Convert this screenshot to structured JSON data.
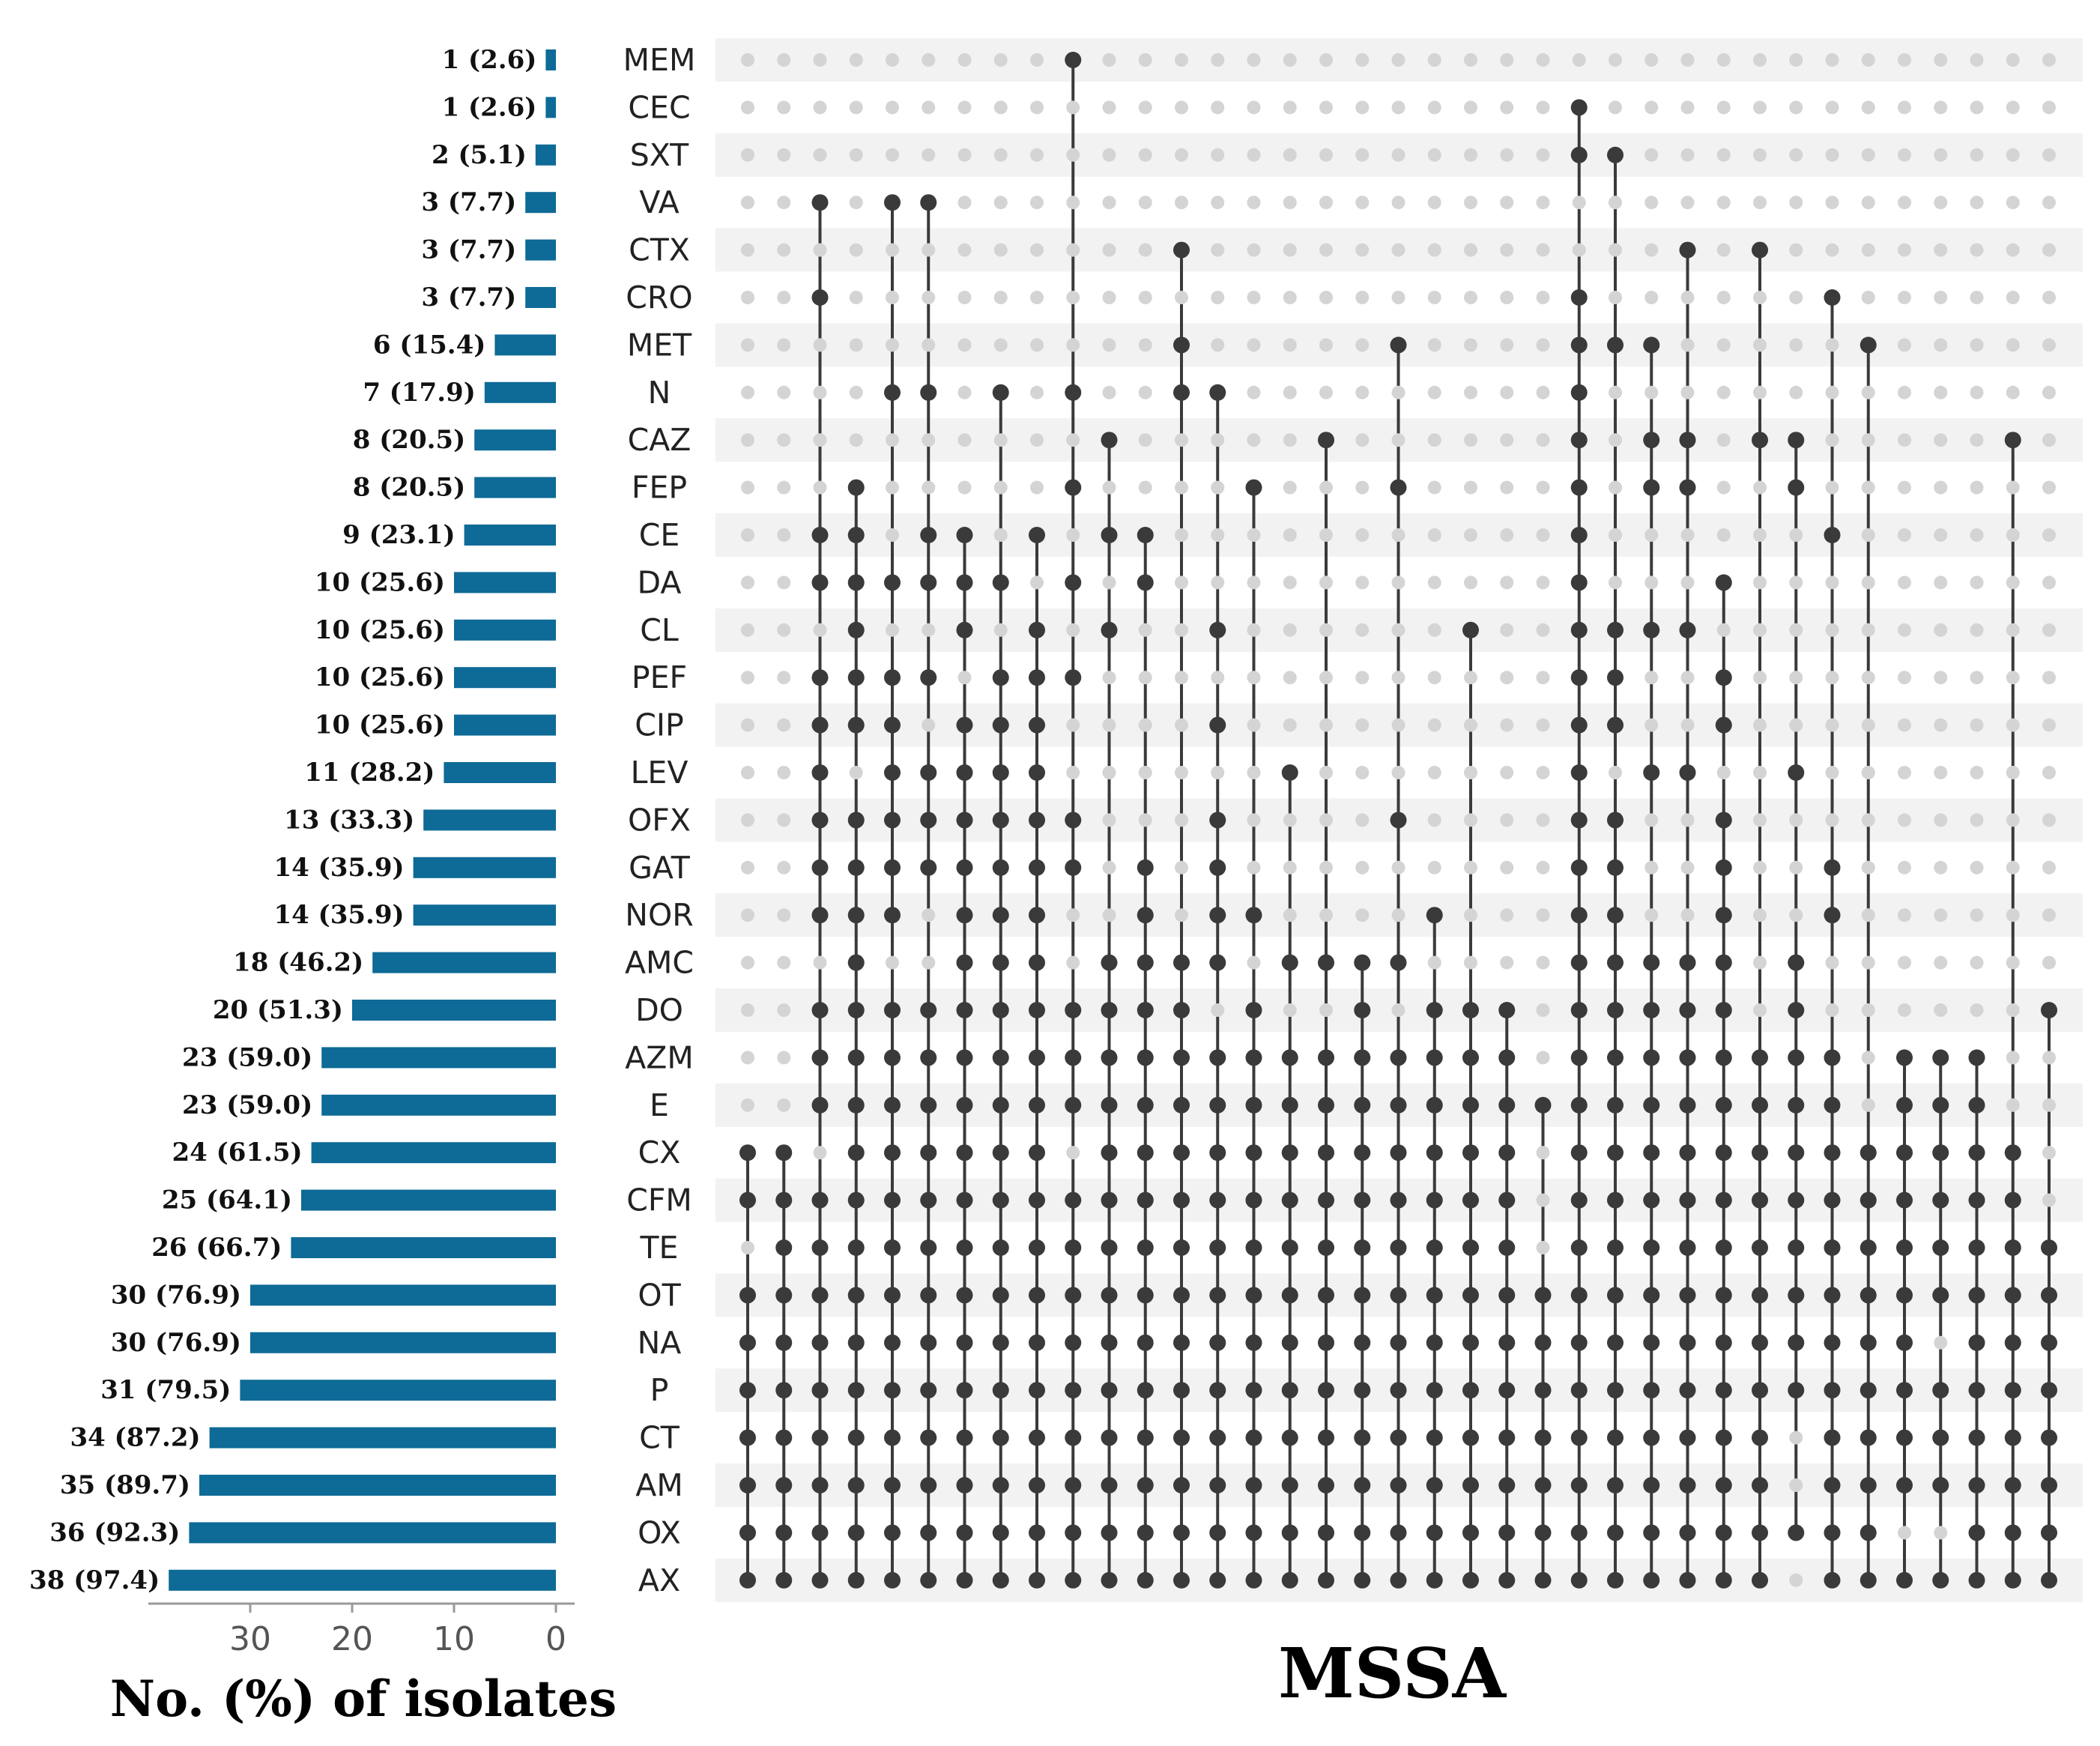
{
  "chart_data": {
    "type": "upset",
    "title": "MSSA",
    "xlabel": "No. (%) of isolates",
    "xlim": [
      0,
      40
    ],
    "x_ticks": [
      "30",
      "20",
      "10",
      "0"
    ],
    "x_tick_values": [
      30,
      20,
      10,
      0
    ],
    "colors": {
      "bar": "#0e6a96",
      "dot_active": "#3a3a3a",
      "dot_inactive": "#d4d4d4",
      "stripe": "#f2f2f2",
      "axis": "#999999"
    },
    "sets": [
      "MEM",
      "CEC",
      "SXT",
      "VA",
      "CTX",
      "CRO",
      "MET",
      "N",
      "CAZ",
      "FEP",
      "CE",
      "DA",
      "CL",
      "PEF",
      "CIP",
      "LEV",
      "OFX",
      "GAT",
      "NOR",
      "AMC",
      "DO",
      "AZM",
      "E",
      "CX",
      "CFM",
      "TE",
      "OT",
      "NA",
      "P",
      "CT",
      "AM",
      "OX",
      "AX"
    ],
    "set_sizes": [
      1,
      1,
      2,
      3,
      3,
      3,
      6,
      7,
      8,
      8,
      9,
      10,
      10,
      10,
      10,
      11,
      13,
      14,
      14,
      18,
      20,
      23,
      23,
      24,
      25,
      26,
      30,
      30,
      31,
      34,
      35,
      36,
      38
    ],
    "set_size_labels": [
      "1 (2.6)",
      "1 (2.6)",
      "2 (5.1)",
      "3 (7.7)",
      "3 (7.7)",
      "3 (7.7)",
      "6 (15.4)",
      "7 (17.9)",
      "8 (20.5)",
      "8 (20.5)",
      "9 (23.1)",
      "10 (25.6)",
      "10 (25.6)",
      "10 (25.6)",
      "10 (25.6)",
      "11 (28.2)",
      "13 (33.3)",
      "14 (35.9)",
      "14 (35.9)",
      "18 (46.2)",
      "20 (51.3)",
      "23 (59.0)",
      "23 (59.0)",
      "24 (61.5)",
      "25 (64.1)",
      "26 (66.7)",
      "30 (76.9)",
      "30 (76.9)",
      "31 (79.5)",
      "34 (87.2)",
      "35 (89.7)",
      "36 (92.3)",
      "38 (97.4)"
    ],
    "intersections": [
      [
        "CX",
        "CFM",
        "OT",
        "NA",
        "P",
        "CT",
        "AM",
        "OX",
        "AX"
      ],
      [
        "CX",
        "CFM",
        "TE",
        "OT",
        "NA",
        "P",
        "CT",
        "AM",
        "OX",
        "AX"
      ],
      [
        "VA",
        "CRO",
        "CE",
        "DA",
        "PEF",
        "CIP",
        "LEV",
        "OFX",
        "GAT",
        "NOR",
        "DO",
        "AZM",
        "E",
        "CFM",
        "TE",
        "OT",
        "NA",
        "P",
        "CT",
        "AM",
        "OX",
        "AX"
      ],
      [
        "FEP",
        "CE",
        "DA",
        "CL",
        "PEF",
        "CIP",
        "OFX",
        "GAT",
        "NOR",
        "AMC",
        "DO",
        "AZM",
        "E",
        "CX",
        "CFM",
        "TE",
        "OT",
        "NA",
        "P",
        "CT",
        "AM",
        "OX",
        "AX"
      ],
      [
        "VA",
        "N",
        "DA",
        "PEF",
        "CIP",
        "LEV",
        "OFX",
        "GAT",
        "NOR",
        "DO",
        "AZM",
        "E",
        "CX",
        "CFM",
        "TE",
        "OT",
        "NA",
        "P",
        "CT",
        "AM",
        "OX",
        "AX"
      ],
      [
        "VA",
        "N",
        "CE",
        "DA",
        "PEF",
        "LEV",
        "OFX",
        "GAT",
        "DO",
        "AZM",
        "E",
        "CX",
        "CFM",
        "TE",
        "OT",
        "NA",
        "P",
        "CT",
        "AM",
        "OX",
        "AX"
      ],
      [
        "CE",
        "DA",
        "CL",
        "CIP",
        "LEV",
        "OFX",
        "GAT",
        "NOR",
        "AMC",
        "DO",
        "AZM",
        "E",
        "CX",
        "CFM",
        "TE",
        "OT",
        "NA",
        "P",
        "CT",
        "AM",
        "OX",
        "AX"
      ],
      [
        "N",
        "DA",
        "PEF",
        "CIP",
        "LEV",
        "OFX",
        "GAT",
        "NOR",
        "AMC",
        "DO",
        "AZM",
        "E",
        "CX",
        "CFM",
        "TE",
        "OT",
        "NA",
        "P",
        "CT",
        "AM",
        "OX",
        "AX"
      ],
      [
        "CE",
        "CL",
        "PEF",
        "CIP",
        "LEV",
        "OFX",
        "GAT",
        "NOR",
        "AMC",
        "DO",
        "AZM",
        "E",
        "CX",
        "CFM",
        "TE",
        "OT",
        "NA",
        "P",
        "CT",
        "AM",
        "OX",
        "AX"
      ],
      [
        "MEM",
        "N",
        "FEP",
        "DA",
        "PEF",
        "OFX",
        "GAT",
        "DO",
        "AZM",
        "E",
        "CFM",
        "TE",
        "OT",
        "NA",
        "P",
        "CT",
        "AM",
        "OX",
        "AX"
      ],
      [
        "CAZ",
        "CE",
        "CL",
        "AMC",
        "DO",
        "AZM",
        "E",
        "CX",
        "CFM",
        "TE",
        "OT",
        "NA",
        "P",
        "CT",
        "AM",
        "OX",
        "AX"
      ],
      [
        "CE",
        "DA",
        "GAT",
        "NOR",
        "AMC",
        "DO",
        "AZM",
        "E",
        "CX",
        "CFM",
        "TE",
        "OT",
        "NA",
        "P",
        "CT",
        "AM",
        "OX",
        "AX"
      ],
      [
        "CTX",
        "MET",
        "N",
        "AMC",
        "DO",
        "AZM",
        "E",
        "CX",
        "CFM",
        "TE",
        "OT",
        "NA",
        "P",
        "CT",
        "AM",
        "OX",
        "AX"
      ],
      [
        "N",
        "CL",
        "CIP",
        "OFX",
        "GAT",
        "NOR",
        "AMC",
        "AZM",
        "E",
        "CX",
        "CFM",
        "TE",
        "OT",
        "NA",
        "P",
        "CT",
        "AM",
        "OX",
        "AX"
      ],
      [
        "FEP",
        "NOR",
        "DO",
        "AZM",
        "E",
        "CX",
        "CFM",
        "TE",
        "OT",
        "NA",
        "P",
        "CT",
        "AM",
        "OX",
        "AX"
      ],
      [
        "LEV",
        "AMC",
        "AZM",
        "E",
        "CX",
        "CFM",
        "TE",
        "OT",
        "NA",
        "P",
        "CT",
        "AM",
        "OX",
        "AX"
      ],
      [
        "CAZ",
        "AMC",
        "AZM",
        "E",
        "CX",
        "CFM",
        "TE",
        "OT",
        "NA",
        "P",
        "CT",
        "AM",
        "OX",
        "AX"
      ],
      [
        "AMC",
        "DO",
        "AZM",
        "E",
        "CX",
        "CFM",
        "TE",
        "OT",
        "NA",
        "P",
        "CT",
        "AM",
        "OX",
        "AX"
      ],
      [
        "MET",
        "FEP",
        "OFX",
        "AMC",
        "AZM",
        "E",
        "CX",
        "CFM",
        "TE",
        "OT",
        "NA",
        "P",
        "CT",
        "AM",
        "OX",
        "AX"
      ],
      [
        "NOR",
        "DO",
        "AZM",
        "E",
        "CX",
        "CFM",
        "TE",
        "OT",
        "NA",
        "P",
        "CT",
        "AM",
        "OX",
        "AX"
      ],
      [
        "CL",
        "DO",
        "AZM",
        "E",
        "CX",
        "CFM",
        "TE",
        "OT",
        "NA",
        "P",
        "CT",
        "AM",
        "OX",
        "AX"
      ],
      [
        "DO",
        "AZM",
        "E",
        "CX",
        "CFM",
        "TE",
        "OT",
        "NA",
        "P",
        "CT",
        "AM",
        "OX",
        "AX"
      ],
      [
        "E",
        "OT",
        "NA",
        "P",
        "CT",
        "AM",
        "OX",
        "AX"
      ],
      [
        "CEC",
        "SXT",
        "CRO",
        "MET",
        "N",
        "CAZ",
        "FEP",
        "CE",
        "DA",
        "CL",
        "PEF",
        "CIP",
        "LEV",
        "OFX",
        "GAT",
        "NOR",
        "AMC",
        "DO",
        "AZM",
        "E",
        "CX",
        "CFM",
        "TE",
        "OT",
        "NA",
        "P",
        "CT",
        "AM",
        "OX",
        "AX"
      ],
      [
        "SXT",
        "MET",
        "CL",
        "PEF",
        "CIP",
        "OFX",
        "GAT",
        "NOR",
        "AMC",
        "DO",
        "AZM",
        "E",
        "CX",
        "CFM",
        "TE",
        "OT",
        "NA",
        "P",
        "CT",
        "AM",
        "OX",
        "AX"
      ],
      [
        "MET",
        "CAZ",
        "FEP",
        "CL",
        "LEV",
        "AMC",
        "DO",
        "AZM",
        "E",
        "CX",
        "CFM",
        "TE",
        "OT",
        "NA",
        "P",
        "CT",
        "AM",
        "OX",
        "AX"
      ],
      [
        "CTX",
        "CAZ",
        "FEP",
        "CL",
        "LEV",
        "AMC",
        "DO",
        "AZM",
        "E",
        "CX",
        "CFM",
        "TE",
        "OT",
        "NA",
        "P",
        "CT",
        "AM",
        "OX",
        "AX"
      ],
      [
        "DA",
        "PEF",
        "CIP",
        "OFX",
        "GAT",
        "NOR",
        "AMC",
        "DO",
        "AZM",
        "E",
        "CX",
        "CFM",
        "TE",
        "OT",
        "NA",
        "P",
        "CT",
        "AM",
        "OX",
        "AX"
      ],
      [
        "CTX",
        "CAZ",
        "AZM",
        "E",
        "CX",
        "CFM",
        "TE",
        "OT",
        "NA",
        "P",
        "CT",
        "AM",
        "OX",
        "AX"
      ],
      [
        "CAZ",
        "FEP",
        "LEV",
        "AMC",
        "DO",
        "AZM",
        "E",
        "CX",
        "CFM",
        "TE",
        "OT",
        "NA",
        "P",
        "OX"
      ],
      [
        "CRO",
        "CE",
        "GAT",
        "NOR",
        "AZM",
        "E",
        "CX",
        "CFM",
        "TE",
        "OT",
        "NA",
        "P",
        "CT",
        "AM",
        "OX",
        "AX"
      ],
      [
        "MET",
        "CX",
        "CFM",
        "TE",
        "OT",
        "NA",
        "P",
        "CT",
        "AM",
        "OX",
        "AX"
      ],
      [
        "AZM",
        "E",
        "CX",
        "CFM",
        "TE",
        "OT",
        "NA",
        "P",
        "CT",
        "AM",
        "AX"
      ],
      [
        "AZM",
        "E",
        "CX",
        "CFM",
        "TE",
        "OT",
        "P",
        "CT",
        "AM",
        "AX"
      ],
      [
        "AZM",
        "E",
        "CX",
        "CFM",
        "TE",
        "OT",
        "NA",
        "P",
        "CT",
        "AM",
        "OX",
        "AX"
      ],
      [
        "CAZ",
        "CX",
        "CFM",
        "TE",
        "OT",
        "NA",
        "P",
        "CT",
        "AM",
        "OX",
        "AX"
      ],
      [
        "DO",
        "TE",
        "OT",
        "NA",
        "P",
        "CT",
        "AM",
        "OX",
        "AX"
      ]
    ]
  }
}
